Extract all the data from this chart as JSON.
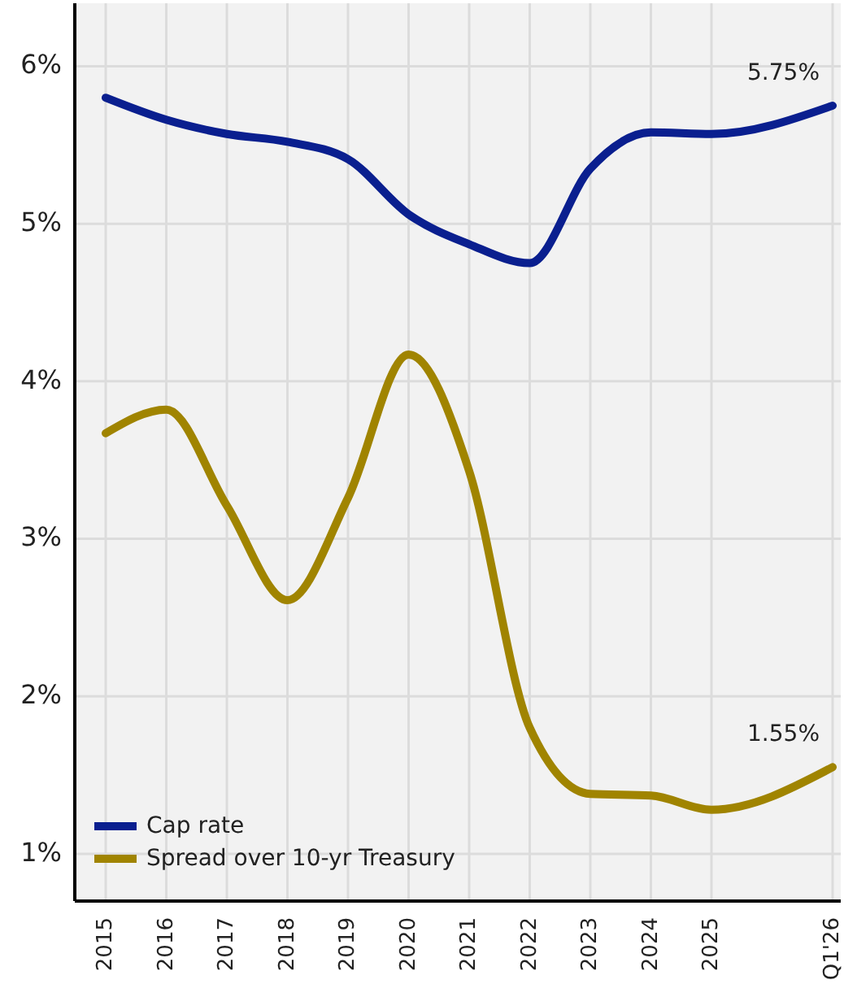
{
  "chart_data": {
    "type": "line",
    "categories": [
      "2015",
      "2016",
      "2017",
      "2018",
      "2019",
      "2020",
      "2021",
      "2022",
      "2023",
      "2024",
      "2025",
      null,
      "Q1'26"
    ],
    "series": [
      {
        "name": "Cap rate",
        "color": "#0a1f8f",
        "values": [
          5.8,
          5.66,
          5.57,
          5.52,
          5.41,
          5.06,
          4.87,
          4.75,
          5.35,
          5.58,
          5.57,
          null,
          5.75
        ]
      },
      {
        "name": "Spread over 10-yr Treasury",
        "color": "#a08400",
        "values": [
          3.67,
          3.82,
          3.21,
          2.61,
          3.26,
          4.17,
          3.43,
          1.8,
          1.38,
          1.37,
          1.28,
          null,
          1.55
        ]
      }
    ],
    "ylim": [
      0.7,
      6.4
    ],
    "yticks": [
      {
        "value": 1,
        "label": "1%"
      },
      {
        "value": 2,
        "label": "2%"
      },
      {
        "value": 3,
        "label": "3%"
      },
      {
        "value": 4,
        "label": "4%"
      },
      {
        "value": 5,
        "label": "5%"
      },
      {
        "value": 6,
        "label": "6%"
      }
    ],
    "grid": true,
    "legend": "bottom left",
    "line_style": "solid",
    "marker": "none",
    "annotations": [
      {
        "text": "5.75%",
        "x": "Q1'26",
        "y": 5.75
      },
      {
        "text": "1.55%",
        "x": "Q1'26",
        "y": 1.55
      }
    ]
  }
}
